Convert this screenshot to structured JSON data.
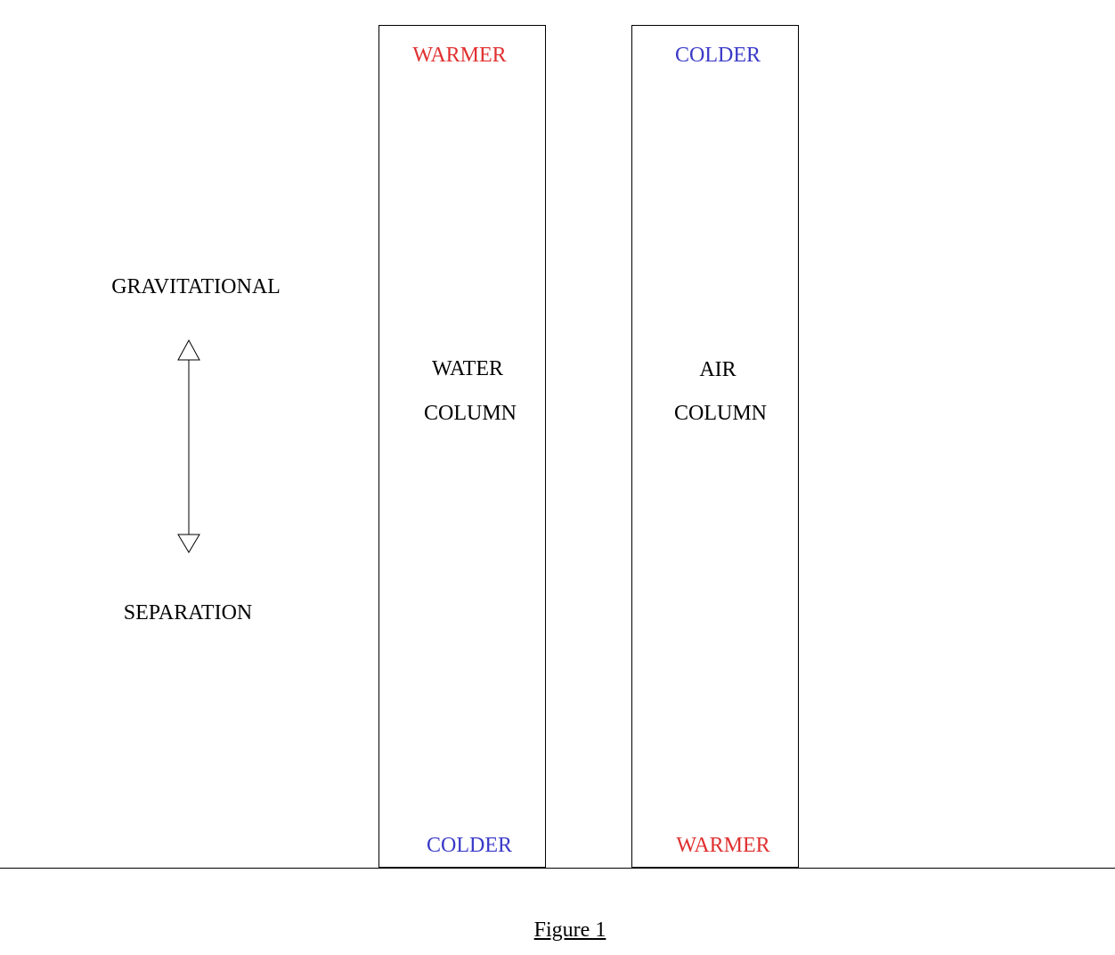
{
  "left_label": {
    "top": "GRAVITATIONAL",
    "bottom": "SEPARATION"
  },
  "water_column": {
    "top": "WARMER",
    "label_line1": "WATER",
    "label_line2": "COLUMN",
    "bottom": "COLDER"
  },
  "air_column": {
    "top": "COLDER",
    "label_line1": "AIR",
    "label_line2": "COLUMN",
    "bottom": "WARMER"
  },
  "caption": "Figure 1",
  "colors": {
    "warmer": "#e03030",
    "colder": "#3a3ac8"
  }
}
